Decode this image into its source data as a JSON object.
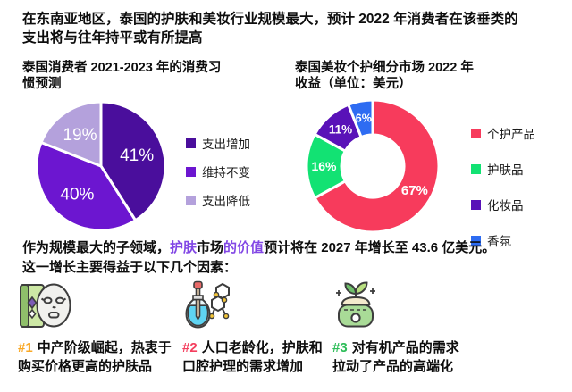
{
  "header": {
    "title": "在东南亚地区，泰国的护肤和美妆行业规模最大，预计 2022 年消费者在该垂类的支出将与往年持平或有所提高",
    "lines": [
      "在东南亚地区，泰国的护肤和美妆行业规模最大，预计 2022 年消费者在该垂类的",
      "支出将与往年持平或有所提高"
    ]
  },
  "chart_data": [
    {
      "type": "pie",
      "title": "泰国消费者 2021-2023 年的消费习惯预测",
      "title_lines": [
        "泰国消费者 2021-2023 年的消费习",
        "惯预测"
      ],
      "categories": [
        "支出增加",
        "维持不变",
        "支出降低"
      ],
      "values": [
        41,
        40,
        19
      ],
      "labels": [
        "41%",
        "40%",
        "19%"
      ],
      "colors": [
        "#4A0E9C",
        "#6C16D0",
        "#B4A1DC"
      ],
      "donut": false,
      "legend_position": "right"
    },
    {
      "type": "pie",
      "title": "泰国美妆个护细分市场 2022 年收益（单位：美元）",
      "title_lines": [
        "泰国美妆个护细分市场 2022 年",
        "收益（单位：美元）"
      ],
      "categories": [
        "个护产品",
        "护肤品",
        "化妆品",
        "香氛"
      ],
      "values": [
        67,
        16,
        11,
        6
      ],
      "labels": [
        "67%",
        "16%",
        "11%",
        "6%"
      ],
      "colors": [
        "#F73B5C",
        "#12E273",
        "#5912B8",
        "#2E6CF2"
      ],
      "donut": true,
      "inner_radius_ratio": 0.473,
      "legend_position": "right"
    }
  ],
  "paragraph": {
    "seg1": "作为规模最大的子领域，",
    "highlight1": "护肤",
    "seg2": "市场",
    "highlight2": "的价值",
    "seg3": "预计将在 2027 年增长至 43.6 亿美元。",
    "line2": "这一增长主要得益于以下几个因素：",
    "highlight_color": "#8247E5"
  },
  "factors": [
    {
      "tag": "#1",
      "tag_color": "#F9A825",
      "icon": "sheet-mask-icon",
      "lines": [
        "中产阶级崛起，热衷于",
        "购买价格更高的护肤品"
      ]
    },
    {
      "tag": "#2",
      "tag_color": "#F43F5E",
      "icon": "dropper-molecule-icon",
      "lines": [
        "人口老龄化，护肤和",
        "口腔护理的需求增加"
      ]
    },
    {
      "tag": "#3",
      "tag_color": "#2EBD59",
      "icon": "organic-cream-jar-icon",
      "lines": [
        "对有机产品的需求",
        "拉动了产品的高端化"
      ]
    }
  ]
}
